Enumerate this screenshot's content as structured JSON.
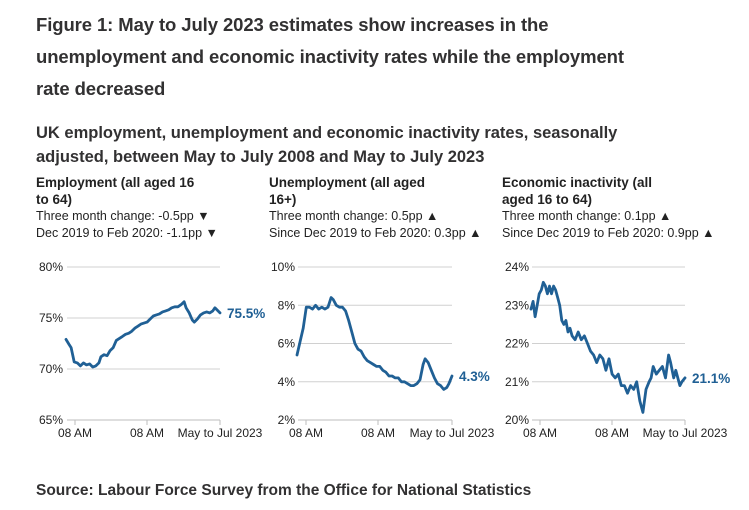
{
  "figure": {
    "title": "Figure 1: May to July 2023 estimates show increases in the unemployment and economic inactivity rates while the employment rate decreased",
    "subtitle": "UK employment, unemployment and economic inactivity rates, seasonally adjusted, between May to July 2008 and May to July 2023",
    "source": "Source: Labour Force Survey from the Office for National Statistics"
  },
  "colors": {
    "line": "#206095",
    "grid": "#d0d0d0",
    "text": "#222222"
  },
  "panels": [
    {
      "title": "Employment (all aged 16 to 64)",
      "change_3m": "Three month change: -0.5pp ▼",
      "change_covid": "Dec 2019 to Feb 2020: -1.1pp ▼"
    },
    {
      "title": "Unemployment (all aged 16+)",
      "change_3m": "Three month change: 0.5pp ▲",
      "change_covid": "Since Dec 2019 to Feb 2020: 0.3pp ▲"
    },
    {
      "title": "Economic inactivity (all aged 16 to 64)",
      "change_3m": "Three month change: 0.1pp ▲",
      "change_covid": "Since Dec 2019 to Feb 2020: 0.9pp ▲"
    }
  ],
  "chart_data": [
    {
      "type": "line",
      "title": "Employment (all aged 16 to 64)",
      "xlabel": "",
      "ylabel": "",
      "x_range": [
        "May to Jul 2008",
        "May to Jul 2023"
      ],
      "x_tick_labels": [
        "08 AM",
        "08 AM",
        "May to Jul 2023"
      ],
      "x_tick_positions_year": [
        2010.5,
        2016.5,
        2023.5
      ],
      "ylim": [
        65,
        80
      ],
      "y_ticks": [
        65,
        70,
        75,
        80
      ],
      "y_tick_labels": [
        "65%",
        "70%",
        "75%",
        "80%"
      ],
      "grid": true,
      "end_label": "75.5%",
      "series": [
        {
          "name": "Employment rate",
          "x_years": [
            2008.5,
            2008.8,
            2009.0,
            2009.3,
            2009.6,
            2009.9,
            2010.2,
            2010.5,
            2010.8,
            2011.1,
            2011.4,
            2011.7,
            2011.9,
            2012.2,
            2012.5,
            2012.8,
            2013.1,
            2013.4,
            2013.7,
            2014.0,
            2014.3,
            2014.6,
            2014.9,
            2015.2,
            2015.5,
            2015.8,
            2016.1,
            2016.4,
            2016.7,
            2017.0,
            2017.3,
            2017.6,
            2017.9,
            2018.2,
            2018.5,
            2018.8,
            2019.1,
            2019.4,
            2019.7,
            2020.0,
            2020.2,
            2020.5,
            2020.8,
            2021.0,
            2021.3,
            2021.6,
            2021.9,
            2022.2,
            2022.5,
            2022.8,
            2023.0,
            2023.2,
            2023.5
          ],
          "values": [
            72.9,
            72.4,
            72.1,
            70.7,
            70.6,
            70.3,
            70.6,
            70.4,
            70.5,
            70.2,
            70.3,
            70.6,
            71.2,
            71.4,
            71.3,
            71.8,
            72.1,
            72.8,
            73.0,
            73.2,
            73.4,
            73.5,
            73.7,
            74.0,
            74.2,
            74.4,
            74.5,
            74.6,
            74.9,
            75.2,
            75.3,
            75.4,
            75.6,
            75.7,
            75.8,
            76.0,
            76.1,
            76.1,
            76.3,
            76.6,
            76.0,
            75.5,
            74.8,
            74.6,
            74.9,
            75.3,
            75.5,
            75.6,
            75.5,
            75.7,
            76.0,
            75.8,
            75.5
          ]
        }
      ]
    },
    {
      "type": "line",
      "title": "Unemployment (all aged 16+)",
      "xlabel": "",
      "ylabel": "",
      "x_range": [
        "May to Jul 2008",
        "May to Jul 2023"
      ],
      "x_tick_labels": [
        "08 AM",
        "08 AM",
        "May to Jul 2023"
      ],
      "x_tick_positions_year": [
        2010.5,
        2016.5,
        2023.5
      ],
      "ylim": [
        2,
        10
      ],
      "y_ticks": [
        2,
        4,
        6,
        8,
        10
      ],
      "y_tick_labels": [
        "2%",
        "4%",
        "6%",
        "8%",
        "10%"
      ],
      "grid": true,
      "end_label": "4.3%",
      "series": [
        {
          "name": "Unemployment rate",
          "x_years": [
            2008.5,
            2008.8,
            2009.1,
            2009.4,
            2009.7,
            2010.0,
            2010.3,
            2010.6,
            2010.9,
            2011.2,
            2011.5,
            2011.8,
            2012.0,
            2012.3,
            2012.6,
            2012.9,
            2013.2,
            2013.5,
            2013.8,
            2014.1,
            2014.4,
            2014.7,
            2015.0,
            2015.3,
            2015.6,
            2015.9,
            2016.2,
            2016.5,
            2016.8,
            2017.1,
            2017.4,
            2017.7,
            2018.0,
            2018.3,
            2018.6,
            2018.9,
            2019.2,
            2019.5,
            2019.8,
            2020.1,
            2020.4,
            2020.7,
            2020.9,
            2021.2,
            2021.5,
            2021.8,
            2022.1,
            2022.4,
            2022.7,
            2023.0,
            2023.2,
            2023.5
          ],
          "values": [
            5.4,
            6.1,
            6.8,
            7.9,
            7.9,
            7.8,
            8.0,
            7.8,
            7.9,
            7.8,
            7.9,
            8.4,
            8.3,
            8.0,
            7.9,
            7.9,
            7.7,
            7.2,
            6.6,
            6.0,
            5.7,
            5.6,
            5.3,
            5.1,
            5.0,
            4.9,
            4.8,
            4.8,
            4.6,
            4.5,
            4.3,
            4.3,
            4.2,
            4.2,
            4.0,
            4.0,
            3.9,
            3.8,
            3.8,
            3.9,
            4.1,
            4.9,
            5.2,
            5.0,
            4.6,
            4.2,
            3.9,
            3.8,
            3.6,
            3.7,
            3.9,
            4.3
          ]
        }
      ]
    },
    {
      "type": "line",
      "title": "Economic inactivity (all aged 16 to 64)",
      "xlabel": "",
      "ylabel": "",
      "x_range": [
        "May to Jul 2008",
        "May to Jul 2023"
      ],
      "x_tick_labels": [
        "08 AM",
        "08 AM",
        "May to Jul 2023"
      ],
      "x_tick_positions_year": [
        2010.5,
        2016.5,
        2023.5
      ],
      "ylim": [
        20,
        24
      ],
      "y_ticks": [
        20,
        21,
        22,
        23,
        24
      ],
      "y_tick_labels": [
        "20%",
        "21%",
        "22%",
        "23%",
        "24%"
      ],
      "grid": true,
      "end_label": "21.1%",
      "series": [
        {
          "name": "Economic inactivity rate",
          "x_years": [
            2008.5,
            2008.7,
            2008.9,
            2009.1,
            2009.3,
            2009.5,
            2009.7,
            2009.9,
            2010.1,
            2010.3,
            2010.5,
            2010.7,
            2010.9,
            2011.1,
            2011.3,
            2011.5,
            2011.7,
            2011.9,
            2012.1,
            2012.3,
            2012.5,
            2012.8,
            2013.1,
            2013.4,
            2013.7,
            2014.0,
            2014.3,
            2014.6,
            2014.9,
            2015.2,
            2015.5,
            2015.8,
            2016.1,
            2016.4,
            2016.7,
            2017.0,
            2017.3,
            2017.6,
            2017.9,
            2018.2,
            2018.5,
            2018.8,
            2019.1,
            2019.4,
            2019.7,
            2020.0,
            2020.2,
            2020.4,
            2020.7,
            2021.0,
            2021.3,
            2021.6,
            2021.9,
            2022.1,
            2022.4,
            2022.6,
            2022.8,
            2023.0,
            2023.2,
            2023.5
          ],
          "values": [
            22.9,
            23.1,
            22.7,
            23.0,
            23.3,
            23.4,
            23.6,
            23.5,
            23.3,
            23.5,
            23.3,
            23.5,
            23.4,
            23.2,
            23.0,
            22.6,
            22.5,
            22.6,
            22.3,
            22.4,
            22.2,
            22.1,
            22.3,
            22.1,
            22.2,
            22.0,
            21.8,
            21.7,
            21.5,
            21.7,
            21.6,
            21.3,
            21.6,
            21.2,
            21.1,
            21.2,
            20.9,
            20.9,
            20.7,
            20.9,
            20.8,
            21.0,
            20.5,
            20.2,
            20.8,
            21.0,
            21.1,
            21.4,
            21.2,
            21.3,
            21.4,
            21.1,
            21.7,
            21.5,
            21.1,
            21.3,
            21.1,
            20.9,
            21.0,
            21.1
          ]
        }
      ]
    }
  ]
}
